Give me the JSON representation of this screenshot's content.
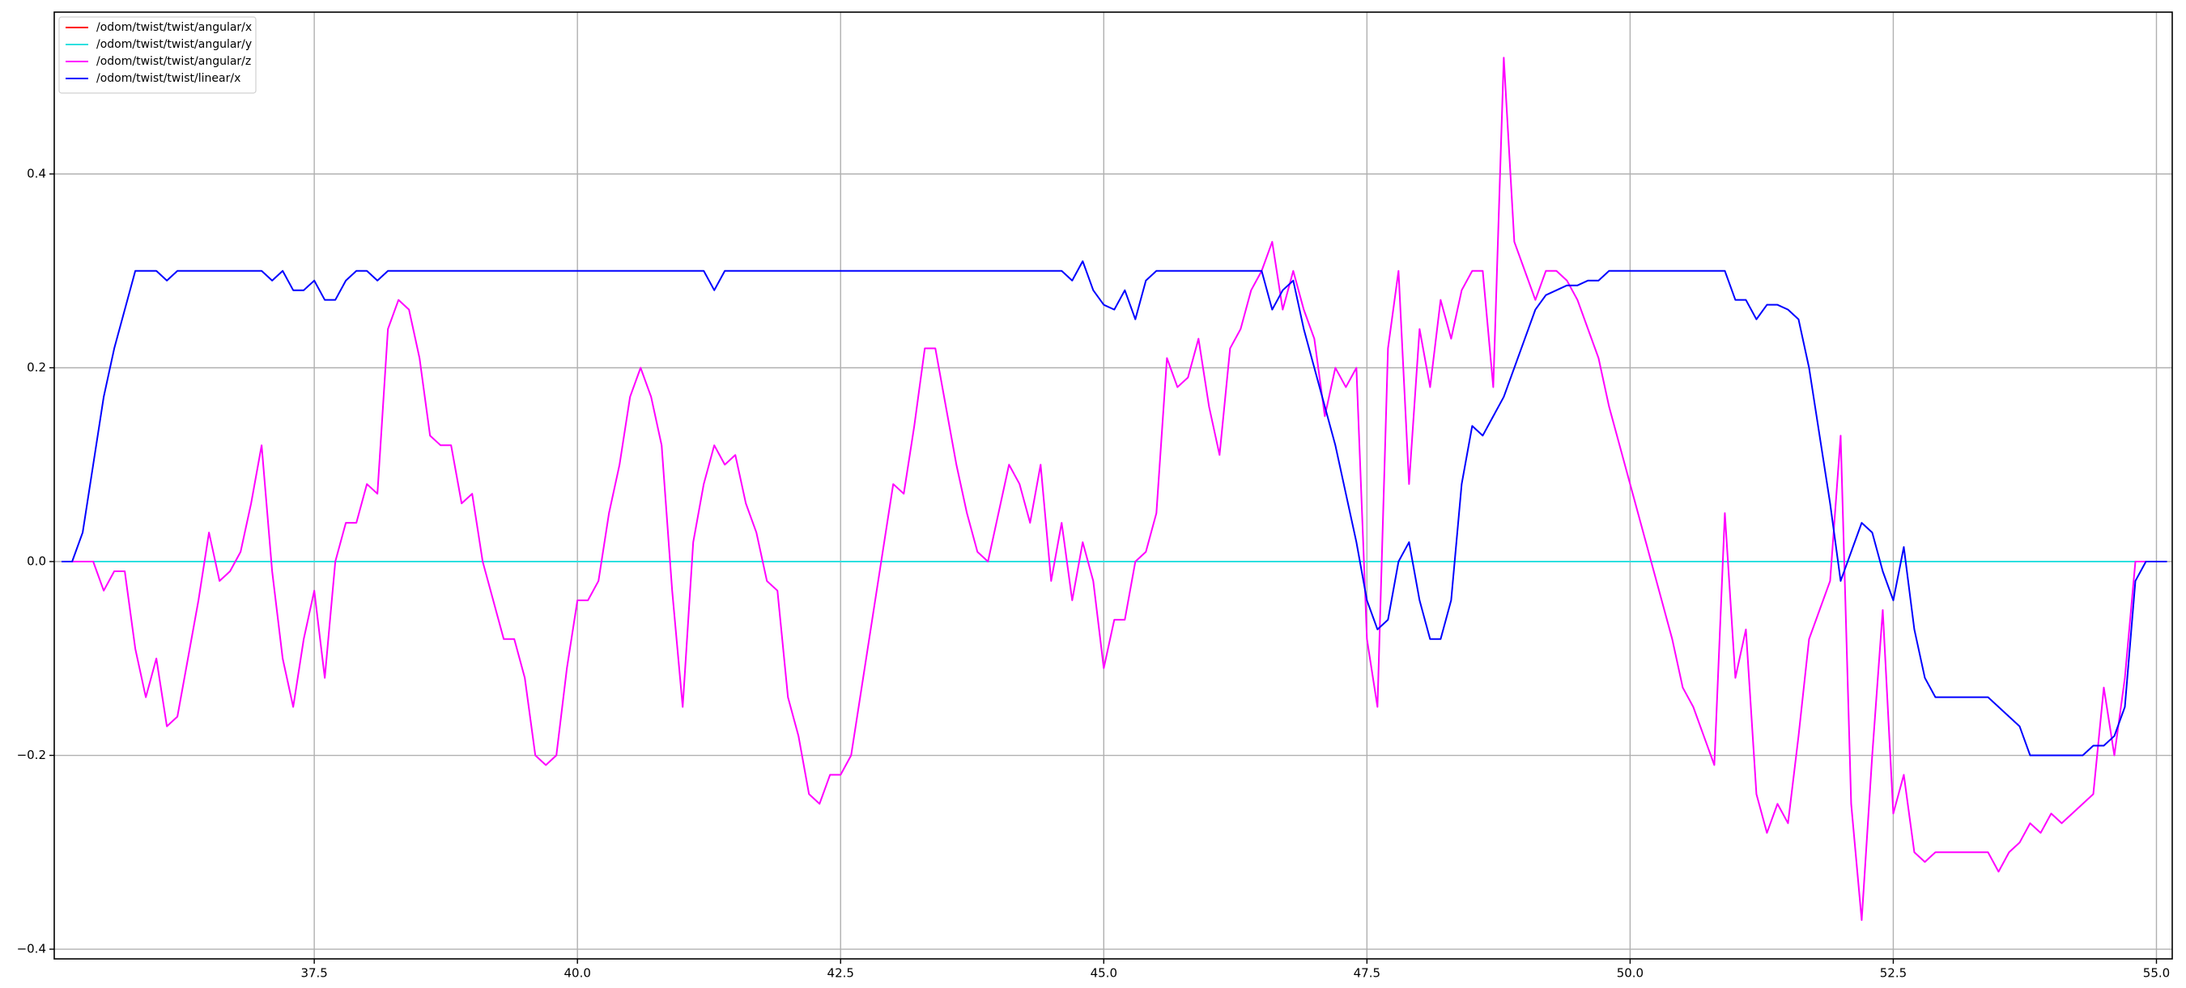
{
  "chart_data": {
    "type": "line",
    "x": [
      35.1,
      35.2,
      35.3,
      35.4,
      35.5,
      35.6,
      35.7,
      35.8,
      35.9,
      36.0,
      36.1,
      36.2,
      36.3,
      36.4,
      36.5,
      36.6,
      36.7,
      36.8,
      36.9,
      37.0,
      37.1,
      37.2,
      37.3,
      37.4,
      37.5,
      37.6,
      37.7,
      37.8,
      37.9,
      38.0,
      38.1,
      38.2,
      38.3,
      38.4,
      38.5,
      38.6,
      38.7,
      38.8,
      38.9,
      39.0,
      39.1,
      39.2,
      39.3,
      39.4,
      39.5,
      39.6,
      39.7,
      39.8,
      39.9,
      40.0,
      40.1,
      40.2,
      40.3,
      40.4,
      40.5,
      40.6,
      40.7,
      40.8,
      40.9,
      41.0,
      41.1,
      41.2,
      41.3,
      41.4,
      41.5,
      41.6,
      41.7,
      41.8,
      41.9,
      42.0,
      42.1,
      42.2,
      42.3,
      42.4,
      42.5,
      42.6,
      42.7,
      42.8,
      42.9,
      43.0,
      43.1,
      43.2,
      43.3,
      43.4,
      43.5,
      43.6,
      43.7,
      43.8,
      43.9,
      44.0,
      44.1,
      44.2,
      44.3,
      44.4,
      44.5,
      44.6,
      44.7,
      44.8,
      44.9,
      45.0,
      45.1,
      45.2,
      45.3,
      45.4,
      45.5,
      45.6,
      45.7,
      45.8,
      45.9,
      46.0,
      46.1,
      46.2,
      46.3,
      46.4,
      46.5,
      46.6,
      46.7,
      46.8,
      46.9,
      47.0,
      47.1,
      47.2,
      47.3,
      47.4,
      47.5,
      47.6,
      47.7,
      47.8,
      47.9,
      48.0,
      48.1,
      48.2,
      48.3,
      48.4,
      48.5,
      48.6,
      48.7,
      48.8,
      48.9,
      49.0,
      49.1,
      49.2,
      49.3,
      49.4,
      49.5,
      49.6,
      49.7,
      49.8,
      49.9,
      50.0,
      50.1,
      50.2,
      50.3,
      50.4,
      50.5,
      50.6,
      50.7,
      50.8,
      50.9,
      51.0,
      51.1,
      51.2,
      51.3,
      51.4,
      51.5,
      51.6,
      51.7,
      51.8,
      51.9,
      52.0,
      52.1,
      52.2,
      52.3,
      52.4,
      52.5,
      52.6,
      52.7,
      52.8,
      52.9,
      53.0,
      53.1,
      53.2,
      53.3,
      53.4,
      53.5,
      53.6,
      53.7,
      53.8,
      53.9,
      54.0,
      54.1,
      54.2,
      54.3,
      54.4,
      54.5,
      54.6,
      54.7,
      54.8,
      54.9,
      55.0,
      55.1
    ],
    "series": [
      {
        "name": "/odom/twist/twist/angular/x",
        "color": "#ff0000",
        "values": [
          0,
          0,
          0,
          0,
          0,
          0,
          0,
          0,
          0,
          0,
          0,
          0,
          0,
          0,
          0,
          0,
          0,
          0,
          0,
          0,
          0,
          0,
          0,
          0,
          0,
          0,
          0,
          0,
          0,
          0,
          0,
          0,
          0,
          0,
          0,
          0,
          0,
          0,
          0,
          0,
          0,
          0,
          0,
          0,
          0,
          0,
          0,
          0,
          0,
          0,
          0,
          0,
          0,
          0,
          0,
          0,
          0,
          0,
          0,
          0,
          0,
          0,
          0,
          0,
          0,
          0,
          0,
          0,
          0,
          0,
          0,
          0,
          0,
          0,
          0,
          0,
          0,
          0,
          0,
          0,
          0,
          0,
          0,
          0,
          0,
          0,
          0,
          0,
          0,
          0,
          0,
          0,
          0,
          0,
          0,
          0,
          0,
          0,
          0,
          0,
          0,
          0,
          0,
          0,
          0,
          0,
          0,
          0,
          0,
          0,
          0,
          0,
          0,
          0,
          0,
          0,
          0,
          0,
          0,
          0,
          0,
          0,
          0,
          0,
          0,
          0,
          0,
          0,
          0,
          0,
          0,
          0,
          0,
          0,
          0,
          0,
          0,
          0,
          0,
          0,
          0,
          0,
          0,
          0,
          0,
          0,
          0,
          0,
          0,
          0,
          0,
          0,
          0,
          0,
          0,
          0,
          0,
          0,
          0,
          0,
          0,
          0,
          0,
          0,
          0,
          0,
          0,
          0,
          0,
          0,
          0,
          0,
          0,
          0,
          0,
          0,
          0,
          0,
          0,
          0,
          0,
          0,
          0,
          0,
          0,
          0,
          0,
          0,
          0,
          0,
          0,
          0,
          0,
          0,
          0,
          0,
          0,
          0,
          0,
          0,
          0
        ]
      },
      {
        "name": "/odom/twist/twist/angular/y",
        "color": "#2ee0e0",
        "values": [
          0,
          0,
          0,
          0,
          0,
          0,
          0,
          0,
          0,
          0,
          0,
          0,
          0,
          0,
          0,
          0,
          0,
          0,
          0,
          0,
          0,
          0,
          0,
          0,
          0,
          0,
          0,
          0,
          0,
          0,
          0,
          0,
          0,
          0,
          0,
          0,
          0,
          0,
          0,
          0,
          0,
          0,
          0,
          0,
          0,
          0,
          0,
          0,
          0,
          0,
          0,
          0,
          0,
          0,
          0,
          0,
          0,
          0,
          0,
          0,
          0,
          0,
          0,
          0,
          0,
          0,
          0,
          0,
          0,
          0,
          0,
          0,
          0,
          0,
          0,
          0,
          0,
          0,
          0,
          0,
          0,
          0,
          0,
          0,
          0,
          0,
          0,
          0,
          0,
          0,
          0,
          0,
          0,
          0,
          0,
          0,
          0,
          0,
          0,
          0,
          0,
          0,
          0,
          0,
          0,
          0,
          0,
          0,
          0,
          0,
          0,
          0,
          0,
          0,
          0,
          0,
          0,
          0,
          0,
          0,
          0,
          0,
          0,
          0,
          0,
          0,
          0,
          0,
          0,
          0,
          0,
          0,
          0,
          0,
          0,
          0,
          0,
          0,
          0,
          0,
          0,
          0,
          0,
          0,
          0,
          0,
          0,
          0,
          0,
          0,
          0,
          0,
          0,
          0,
          0,
          0,
          0,
          0,
          0,
          0,
          0,
          0,
          0,
          0,
          0,
          0,
          0,
          0,
          0,
          0,
          0,
          0,
          0,
          0,
          0,
          0,
          0,
          0,
          0,
          0,
          0,
          0,
          0,
          0,
          0,
          0,
          0,
          0,
          0,
          0,
          0,
          0,
          0,
          0,
          0,
          0,
          0,
          0,
          0,
          0,
          0
        ]
      },
      {
        "name": "/odom/twist/twist/angular/z",
        "color": "#ff00ff",
        "values": [
          0,
          0,
          0,
          0,
          -0.03,
          -0.01,
          -0.01,
          -0.09,
          -0.14,
          -0.1,
          -0.17,
          -0.16,
          -0.1,
          -0.04,
          0.03,
          -0.02,
          -0.01,
          0.01,
          0.06,
          0.12,
          -0.01,
          -0.1,
          -0.15,
          -0.08,
          -0.03,
          -0.12,
          0,
          0.04,
          0.04,
          0.08,
          0.07,
          0.24,
          0.27,
          0.26,
          0.21,
          0.13,
          0.12,
          0.12,
          0.06,
          0.07,
          0,
          -0.04,
          -0.08,
          -0.08,
          -0.12,
          -0.2,
          -0.21,
          -0.2,
          -0.11,
          -0.04,
          -0.04,
          -0.02,
          0.05,
          0.1,
          0.17,
          0.2,
          0.17,
          0.12,
          -0.03,
          -0.15,
          0.02,
          0.08,
          0.12,
          0.1,
          0.11,
          0.06,
          0.03,
          -0.02,
          -0.03,
          -0.14,
          -0.18,
          -0.24,
          -0.25,
          -0.22,
          -0.22,
          -0.2,
          -0.13,
          -0.06,
          0.01,
          0.08,
          0.07,
          0.14,
          0.22,
          0.22,
          0.16,
          0.1,
          0.05,
          0.01,
          0,
          0.05,
          0.1,
          0.08,
          0.04,
          0.1,
          -0.02,
          0.04,
          -0.04,
          0.02,
          -0.02,
          -0.11,
          -0.06,
          -0.06,
          0,
          0.01,
          0.05,
          0.21,
          0.18,
          0.19,
          0.23,
          0.16,
          0.11,
          0.22,
          0.24,
          0.28,
          0.3,
          0.33,
          0.26,
          0.3,
          0.26,
          0.23,
          0.15,
          0.2,
          0.18,
          0.2,
          -0.08,
          -0.15,
          0.22,
          0.3,
          0.08,
          0.24,
          0.18,
          0.27,
          0.23,
          0.28,
          0.3,
          0.3,
          0.18,
          0.52,
          0.33,
          0.3,
          0.27,
          0.3,
          0.3,
          0.29,
          0.27,
          0.24,
          0.21,
          0.16,
          0.12,
          0.08,
          0.04,
          0,
          -0.04,
          -0.08,
          -0.13,
          -0.15,
          -0.18,
          -0.21,
          0.05,
          -0.12,
          -0.07,
          -0.24,
          -0.28,
          -0.25,
          -0.27,
          -0.18,
          -0.08,
          -0.05,
          -0.02,
          0.13,
          -0.25,
          -0.37,
          -0.2,
          -0.05,
          -0.26,
          -0.22,
          -0.3,
          -0.31,
          -0.3,
          -0.3,
          -0.3,
          -0.3,
          -0.3,
          -0.3,
          -0.32,
          -0.3,
          -0.29,
          -0.27,
          -0.28,
          -0.26,
          -0.27,
          -0.26,
          -0.25,
          -0.24,
          -0.13,
          -0.2,
          -0.12,
          0,
          0,
          0,
          0
        ]
      },
      {
        "name": "/odom/twist/twist/linear/x",
        "color": "#0000ff",
        "values": [
          0,
          0,
          0.03,
          0.1,
          0.17,
          0.22,
          0.26,
          0.3,
          0.3,
          0.3,
          0.29,
          0.3,
          0.3,
          0.3,
          0.3,
          0.3,
          0.3,
          0.3,
          0.3,
          0.3,
          0.29,
          0.3,
          0.28,
          0.28,
          0.29,
          0.27,
          0.27,
          0.29,
          0.3,
          0.3,
          0.29,
          0.3,
          0.3,
          0.3,
          0.3,
          0.3,
          0.3,
          0.3,
          0.3,
          0.3,
          0.3,
          0.3,
          0.3,
          0.3,
          0.3,
          0.3,
          0.3,
          0.3,
          0.3,
          0.3,
          0.3,
          0.3,
          0.3,
          0.3,
          0.3,
          0.3,
          0.3,
          0.3,
          0.3,
          0.3,
          0.3,
          0.3,
          0.28,
          0.3,
          0.3,
          0.3,
          0.3,
          0.3,
          0.3,
          0.3,
          0.3,
          0.3,
          0.3,
          0.3,
          0.3,
          0.3,
          0.3,
          0.3,
          0.3,
          0.3,
          0.3,
          0.3,
          0.3,
          0.3,
          0.3,
          0.3,
          0.3,
          0.3,
          0.3,
          0.3,
          0.3,
          0.3,
          0.3,
          0.3,
          0.3,
          0.3,
          0.29,
          0.31,
          0.28,
          0.265,
          0.26,
          0.28,
          0.25,
          0.29,
          0.3,
          0.3,
          0.3,
          0.3,
          0.3,
          0.3,
          0.3,
          0.3,
          0.3,
          0.3,
          0.3,
          0.26,
          0.28,
          0.29,
          0.24,
          0.2,
          0.16,
          0.12,
          0.07,
          0.02,
          -0.04,
          -0.07,
          -0.06,
          0,
          0.02,
          -0.04,
          -0.08,
          -0.08,
          -0.04,
          0.08,
          0.14,
          0.13,
          0.15,
          0.17,
          0.2,
          0.23,
          0.26,
          0.275,
          0.28,
          0.285,
          0.285,
          0.29,
          0.29,
          0.3,
          0.3,
          0.3,
          0.3,
          0.3,
          0.3,
          0.3,
          0.3,
          0.3,
          0.3,
          0.3,
          0.3,
          0.27,
          0.27,
          0.25,
          0.265,
          0.265,
          0.26,
          0.25,
          0.2,
          0.13,
          0.06,
          -0.02,
          0.01,
          0.04,
          0.03,
          -0.01,
          -0.04,
          0.015,
          -0.07,
          -0.12,
          -0.14,
          -0.14,
          -0.14,
          -0.14,
          -0.14,
          -0.14,
          -0.15,
          -0.16,
          -0.17,
          -0.2,
          -0.2,
          -0.2,
          -0.2,
          -0.2,
          -0.2,
          -0.19,
          -0.19,
          -0.18,
          -0.15,
          -0.02,
          0,
          0,
          0
        ]
      }
    ],
    "xlim": [
      35.03,
      55.15
    ],
    "ylim": [
      -0.41,
      0.567
    ],
    "xticks": [
      37.5,
      {
        "value": 40.0,
        "label": "40.0"
      },
      42.5,
      {
        "value": 45.0,
        "label": "45.0"
      },
      47.5,
      {
        "value": 50.0,
        "label": "50.0"
      },
      52.5,
      {
        "value": 55.0,
        "label": "55.0"
      }
    ],
    "yticks": [
      {
        "value": -0.4,
        "label": "−0.4"
      },
      {
        "value": -0.2,
        "label": "−0.2"
      },
      {
        "value": 0,
        "label": "0.0"
      },
      0.2,
      0.4
    ],
    "grid": true,
    "legend": "upper left"
  }
}
